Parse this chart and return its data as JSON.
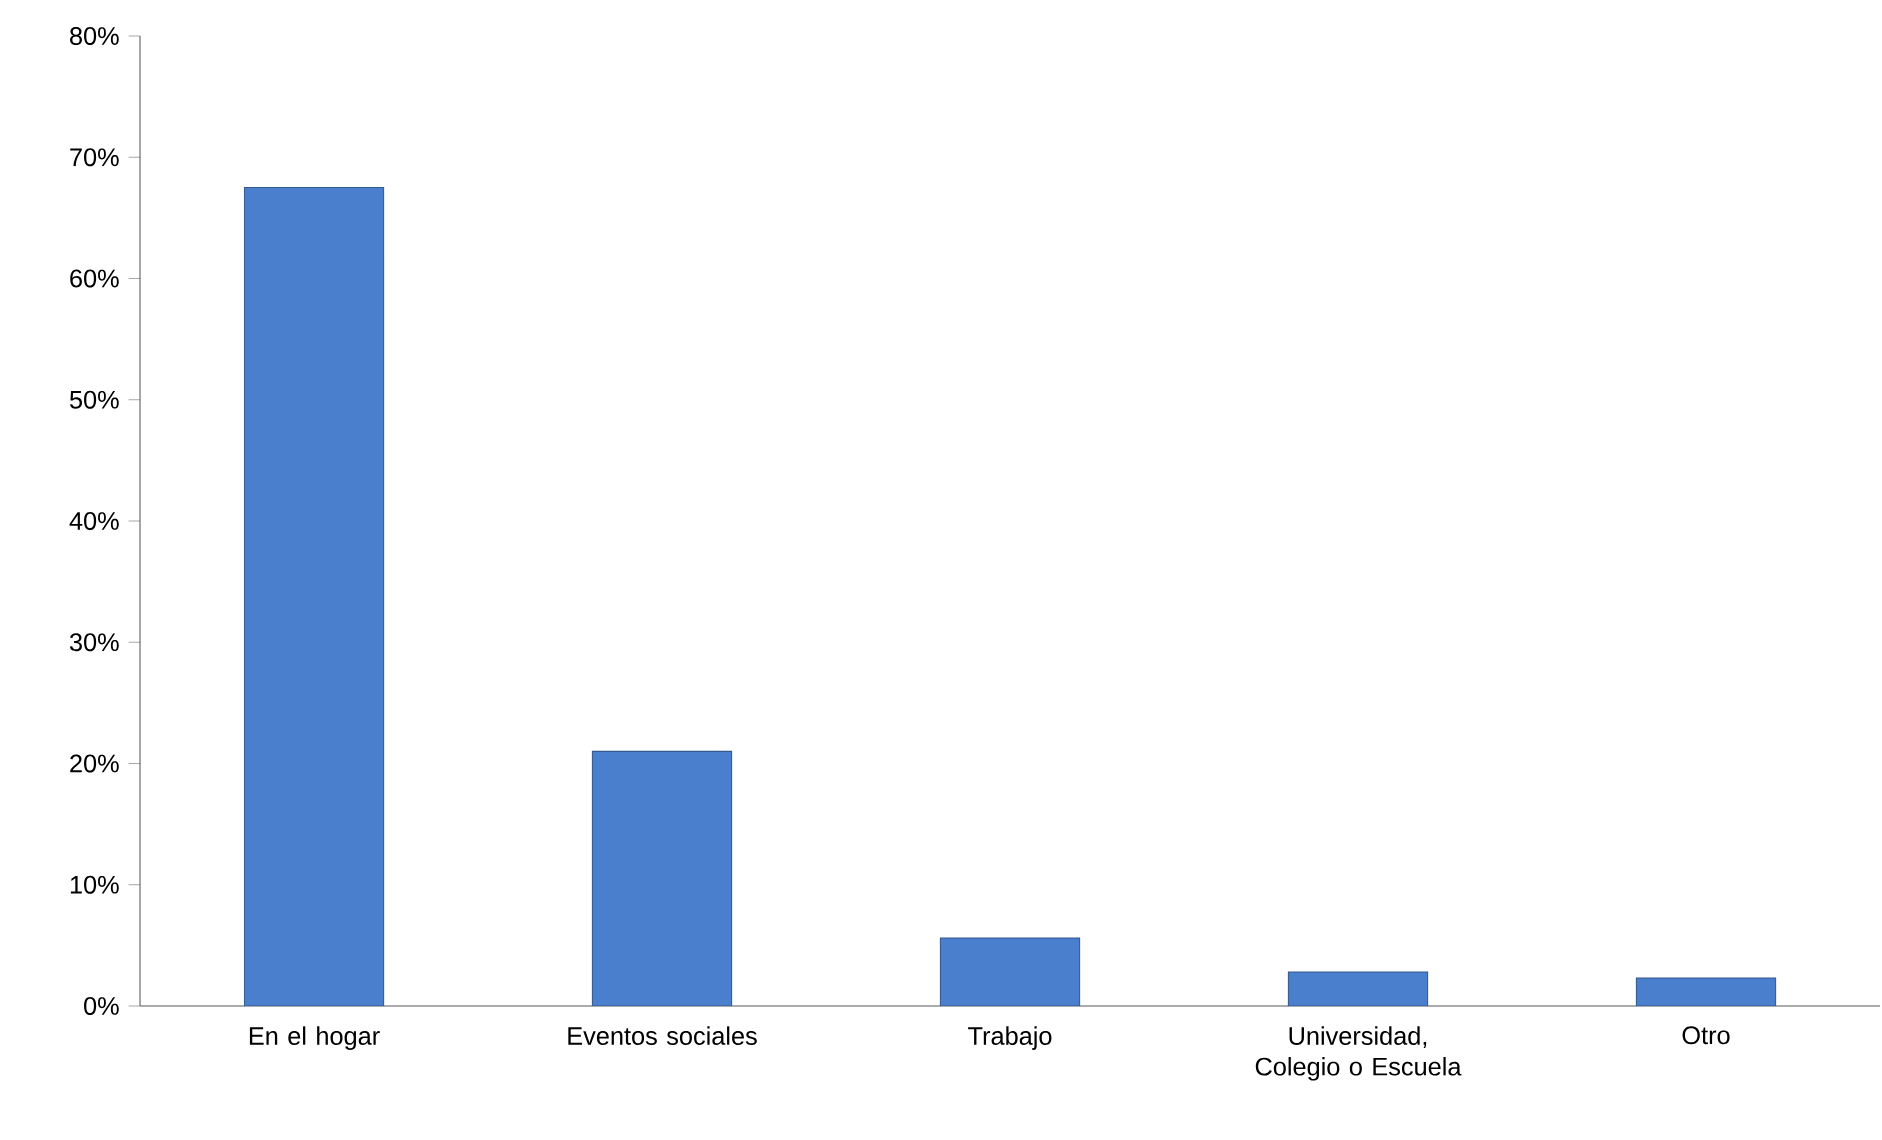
{
  "chart_data": {
    "type": "bar",
    "categories": [
      "En el hogar",
      "Eventos sociales",
      "Trabajo",
      "Universidad, Colegio o Escuela",
      "Otro"
    ],
    "values": [
      67.5,
      21,
      5.6,
      2.8,
      2.3
    ],
    "color": "#4a7fcd",
    "ylim": [
      0,
      80
    ],
    "yticks": [
      {
        "value": 0,
        "label": "0%"
      },
      {
        "value": 10,
        "label": "10%"
      },
      {
        "value": 20,
        "label": "20%"
      },
      {
        "value": 30,
        "label": "30%"
      },
      {
        "value": 40,
        "label": "40%"
      },
      {
        "value": 50,
        "label": "50%"
      },
      {
        "value": 60,
        "label": "60%"
      },
      {
        "value": 70,
        "label": "70%"
      },
      {
        "value": 80,
        "label": "80%"
      }
    ],
    "grid": false
  }
}
